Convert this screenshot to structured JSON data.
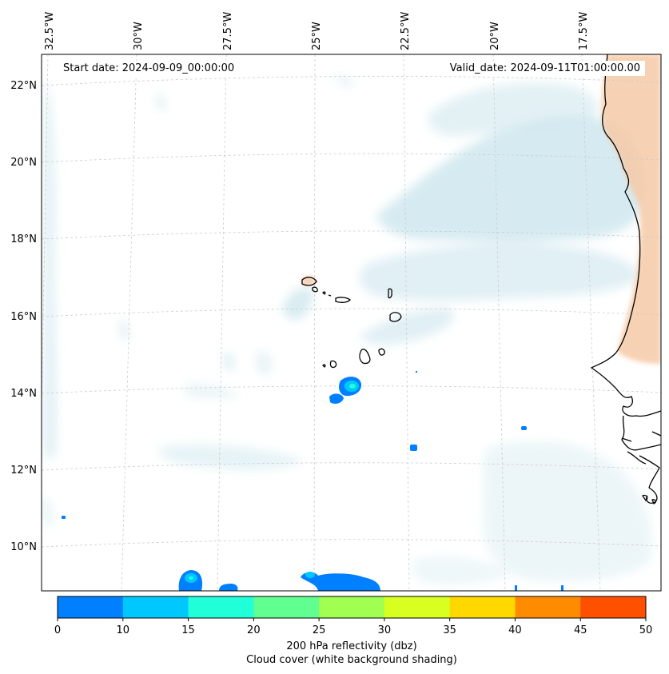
{
  "map": {
    "start_date": "Start date: 2024-09-09_00:00:00",
    "valid_date": "Valid_date: 2024-09-11T01:00:00.00",
    "lon_ticks": [
      "32.5°W",
      "30°W",
      "27.5°W",
      "25°W",
      "22.5°W",
      "20°W",
      "17.5°W"
    ],
    "lat_ticks": [
      "22°N",
      "20°N",
      "18°N",
      "16°N",
      "14°N",
      "12°N",
      "10°N"
    ]
  },
  "colorbar": {
    "ticks": [
      "0",
      "10",
      "15",
      "20",
      "25",
      "30",
      "35",
      "40",
      "45",
      "50"
    ],
    "colors": [
      "#0080ff",
      "#00c8ff",
      "#20ffd8",
      "#60ff90",
      "#a0ff50",
      "#d8ff20",
      "#ffd800",
      "#ff8c00",
      "#ff5000"
    ],
    "label_line1": "200 hPa reflectivity (dbz)",
    "label_line2": "Cloud cover (white background shading)"
  },
  "colors": {
    "cloud": "#c8e4ec",
    "warm_land": "#f6c9a6",
    "coastline": "#000000",
    "grid": "#cccccc"
  }
}
